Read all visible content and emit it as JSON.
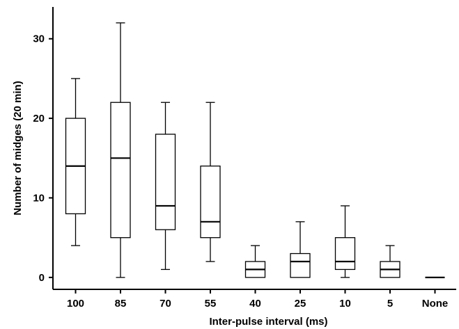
{
  "chart_data": {
    "type": "box",
    "xlabel": "Inter-pulse interval (ms)",
    "ylabel": "Number of midges (20 min)",
    "ylim": [
      -1.5,
      34
    ],
    "yticks": [
      0,
      10,
      20,
      30
    ],
    "grid": false,
    "categories": [
      "100",
      "85",
      "70",
      "55",
      "40",
      "25",
      "10",
      "5",
      "None"
    ],
    "boxes": [
      {
        "category": "100",
        "min": 4,
        "q1": 8,
        "median": 14,
        "q3": 20,
        "max": 25
      },
      {
        "category": "85",
        "min": 0,
        "q1": 5,
        "median": 15,
        "q3": 22,
        "max": 32
      },
      {
        "category": "70",
        "min": 1,
        "q1": 6,
        "median": 9,
        "q3": 18,
        "max": 22
      },
      {
        "category": "55",
        "min": 2,
        "q1": 5,
        "median": 7,
        "q3": 14,
        "max": 22
      },
      {
        "category": "40",
        "min": 0,
        "q1": 0,
        "median": 1,
        "q3": 2,
        "max": 4
      },
      {
        "category": "25",
        "min": 0,
        "q1": 0,
        "median": 2,
        "q3": 3,
        "max": 7
      },
      {
        "category": "10",
        "min": 0,
        "q1": 1,
        "median": 2,
        "q3": 5,
        "max": 9
      },
      {
        "category": "5",
        "min": 0,
        "q1": 0,
        "median": 1,
        "q3": 2,
        "max": 4
      },
      {
        "category": "None",
        "min": 0,
        "q1": 0,
        "median": 0,
        "q3": 0,
        "max": 0
      }
    ]
  }
}
